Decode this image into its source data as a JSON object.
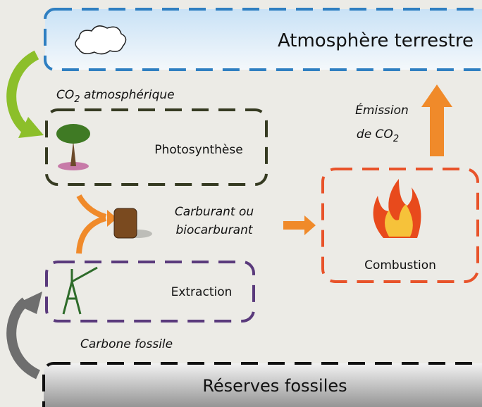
{
  "atmosphere": {
    "label": "Atmosphère terrestre"
  },
  "flows": {
    "co2_atmospheric": {
      "text": "CO",
      "sub": "2",
      "rest": " atmosphérique"
    },
    "emission": {
      "line1": "Émission",
      "line2": "de CO",
      "sub": "2"
    },
    "fuel": {
      "line1": "Carburant ou",
      "line2": "biocarburant"
    },
    "fossil_carbon": {
      "text": "Carbone fossile"
    }
  },
  "nodes": [
    {
      "label": "Photosynthèse"
    },
    {
      "label": "Extraction"
    },
    {
      "label": "Combustion"
    }
  ],
  "reserves": {
    "label": "Réserves fossiles"
  }
}
